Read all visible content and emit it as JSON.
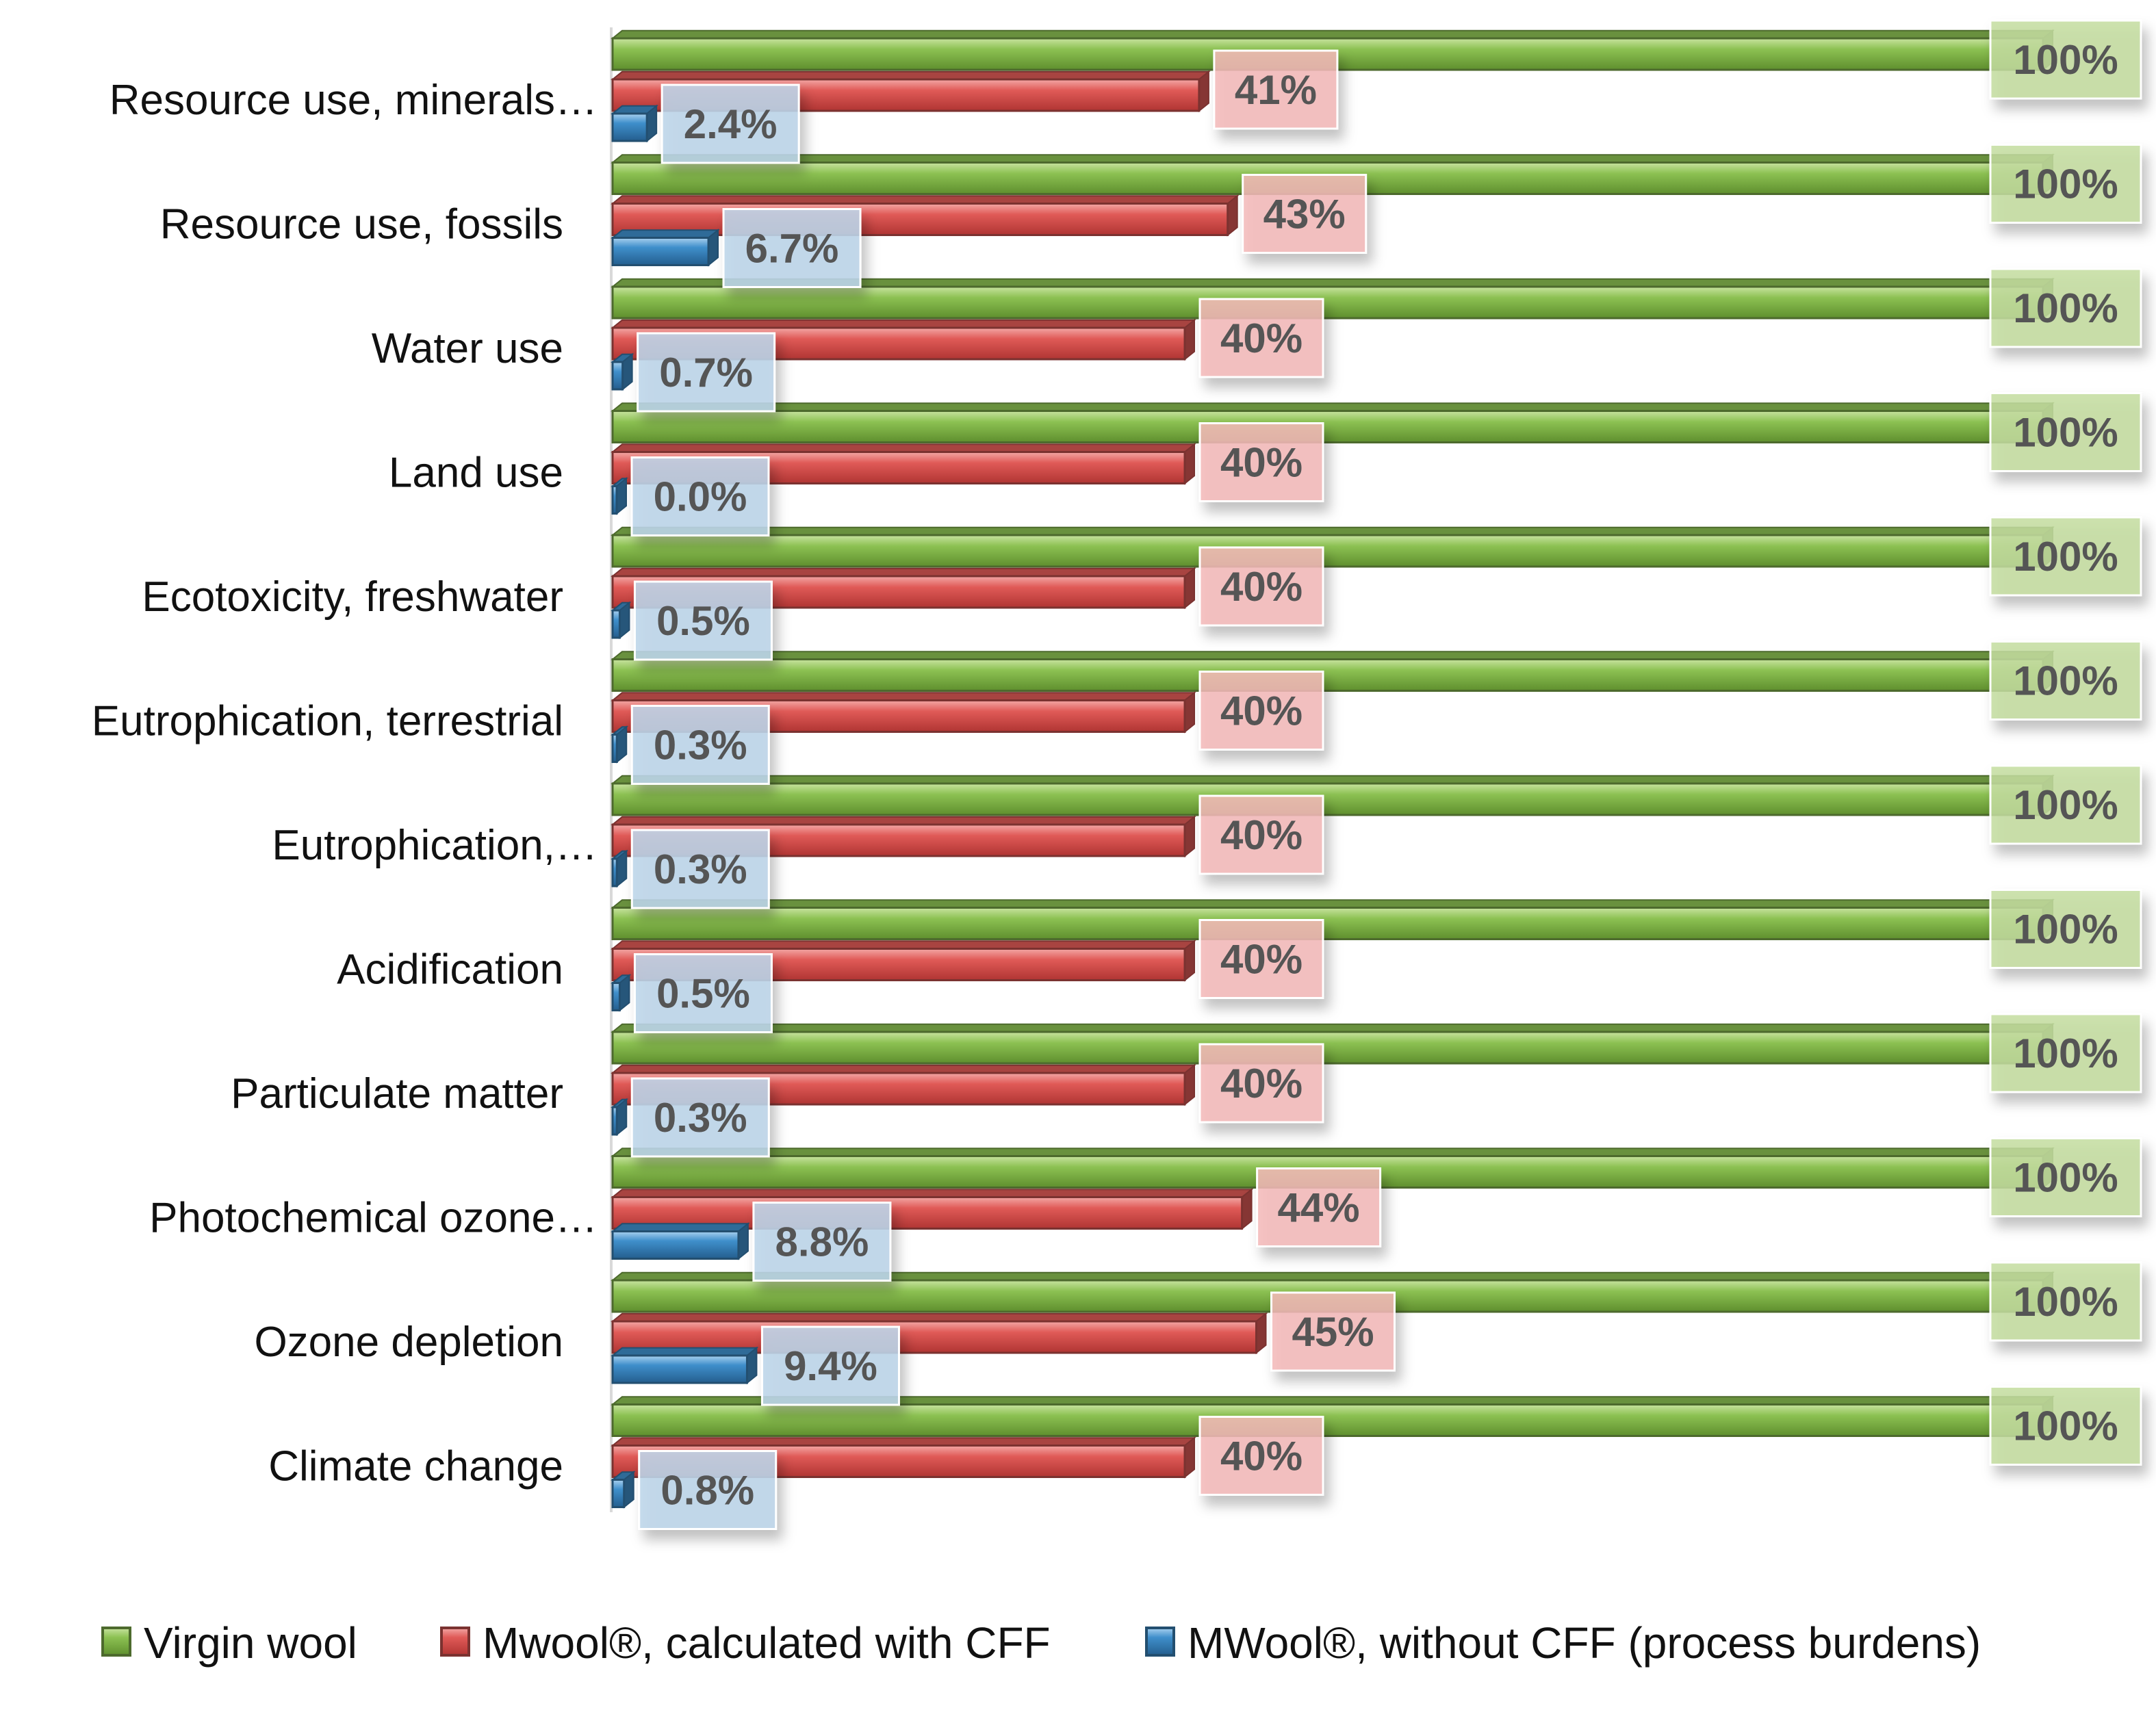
{
  "chart_data": {
    "type": "bar",
    "orientation": "horizontal",
    "title": "",
    "xlabel": "",
    "ylabel": "",
    "xlim": [
      0,
      100
    ],
    "grid": false,
    "legend_position": "bottom",
    "categories": [
      "Resource use, minerals…",
      "Resource use, fossils",
      "Water use",
      "Land use",
      "Ecotoxicity, freshwater",
      "Eutrophication, terrestrial",
      "Eutrophication,…",
      "Acidification",
      "Particulate matter",
      "Photochemical ozone…",
      "Ozone depletion",
      "Climate change"
    ],
    "series": [
      {
        "name": "Virgin wool",
        "color": "#8cc152",
        "values": [
          100,
          100,
          100,
          100,
          100,
          100,
          100,
          100,
          100,
          100,
          100,
          100
        ],
        "labels": [
          "100%",
          "100%",
          "100%",
          "100%",
          "100%",
          "100%",
          "100%",
          "100%",
          "100%",
          "100%",
          "100%",
          "100%"
        ]
      },
      {
        "name": "Mwool®, calculated with CFF",
        "color": "#e05a57",
        "values": [
          41,
          43,
          40,
          40,
          40,
          40,
          40,
          40,
          40,
          44,
          45,
          40
        ],
        "labels": [
          "41%",
          "43%",
          "40%",
          "40%",
          "40%",
          "40%",
          "40%",
          "40%",
          "40%",
          "44%",
          "45%",
          "40%"
        ]
      },
      {
        "name": "MWool®, without CFF (process burdens)",
        "color": "#3f8fcb",
        "values": [
          2.4,
          6.7,
          0.7,
          0.0,
          0.5,
          0.3,
          0.3,
          0.5,
          0.3,
          8.8,
          9.4,
          0.8
        ],
        "labels": [
          "2.4%",
          "6.7%",
          "0.7%",
          "0.0%",
          "0.5%",
          "0.3%",
          "0.3%",
          "0.5%",
          "0.3%",
          "8.8%",
          "9.4%",
          "0.8%"
        ]
      }
    ]
  }
}
